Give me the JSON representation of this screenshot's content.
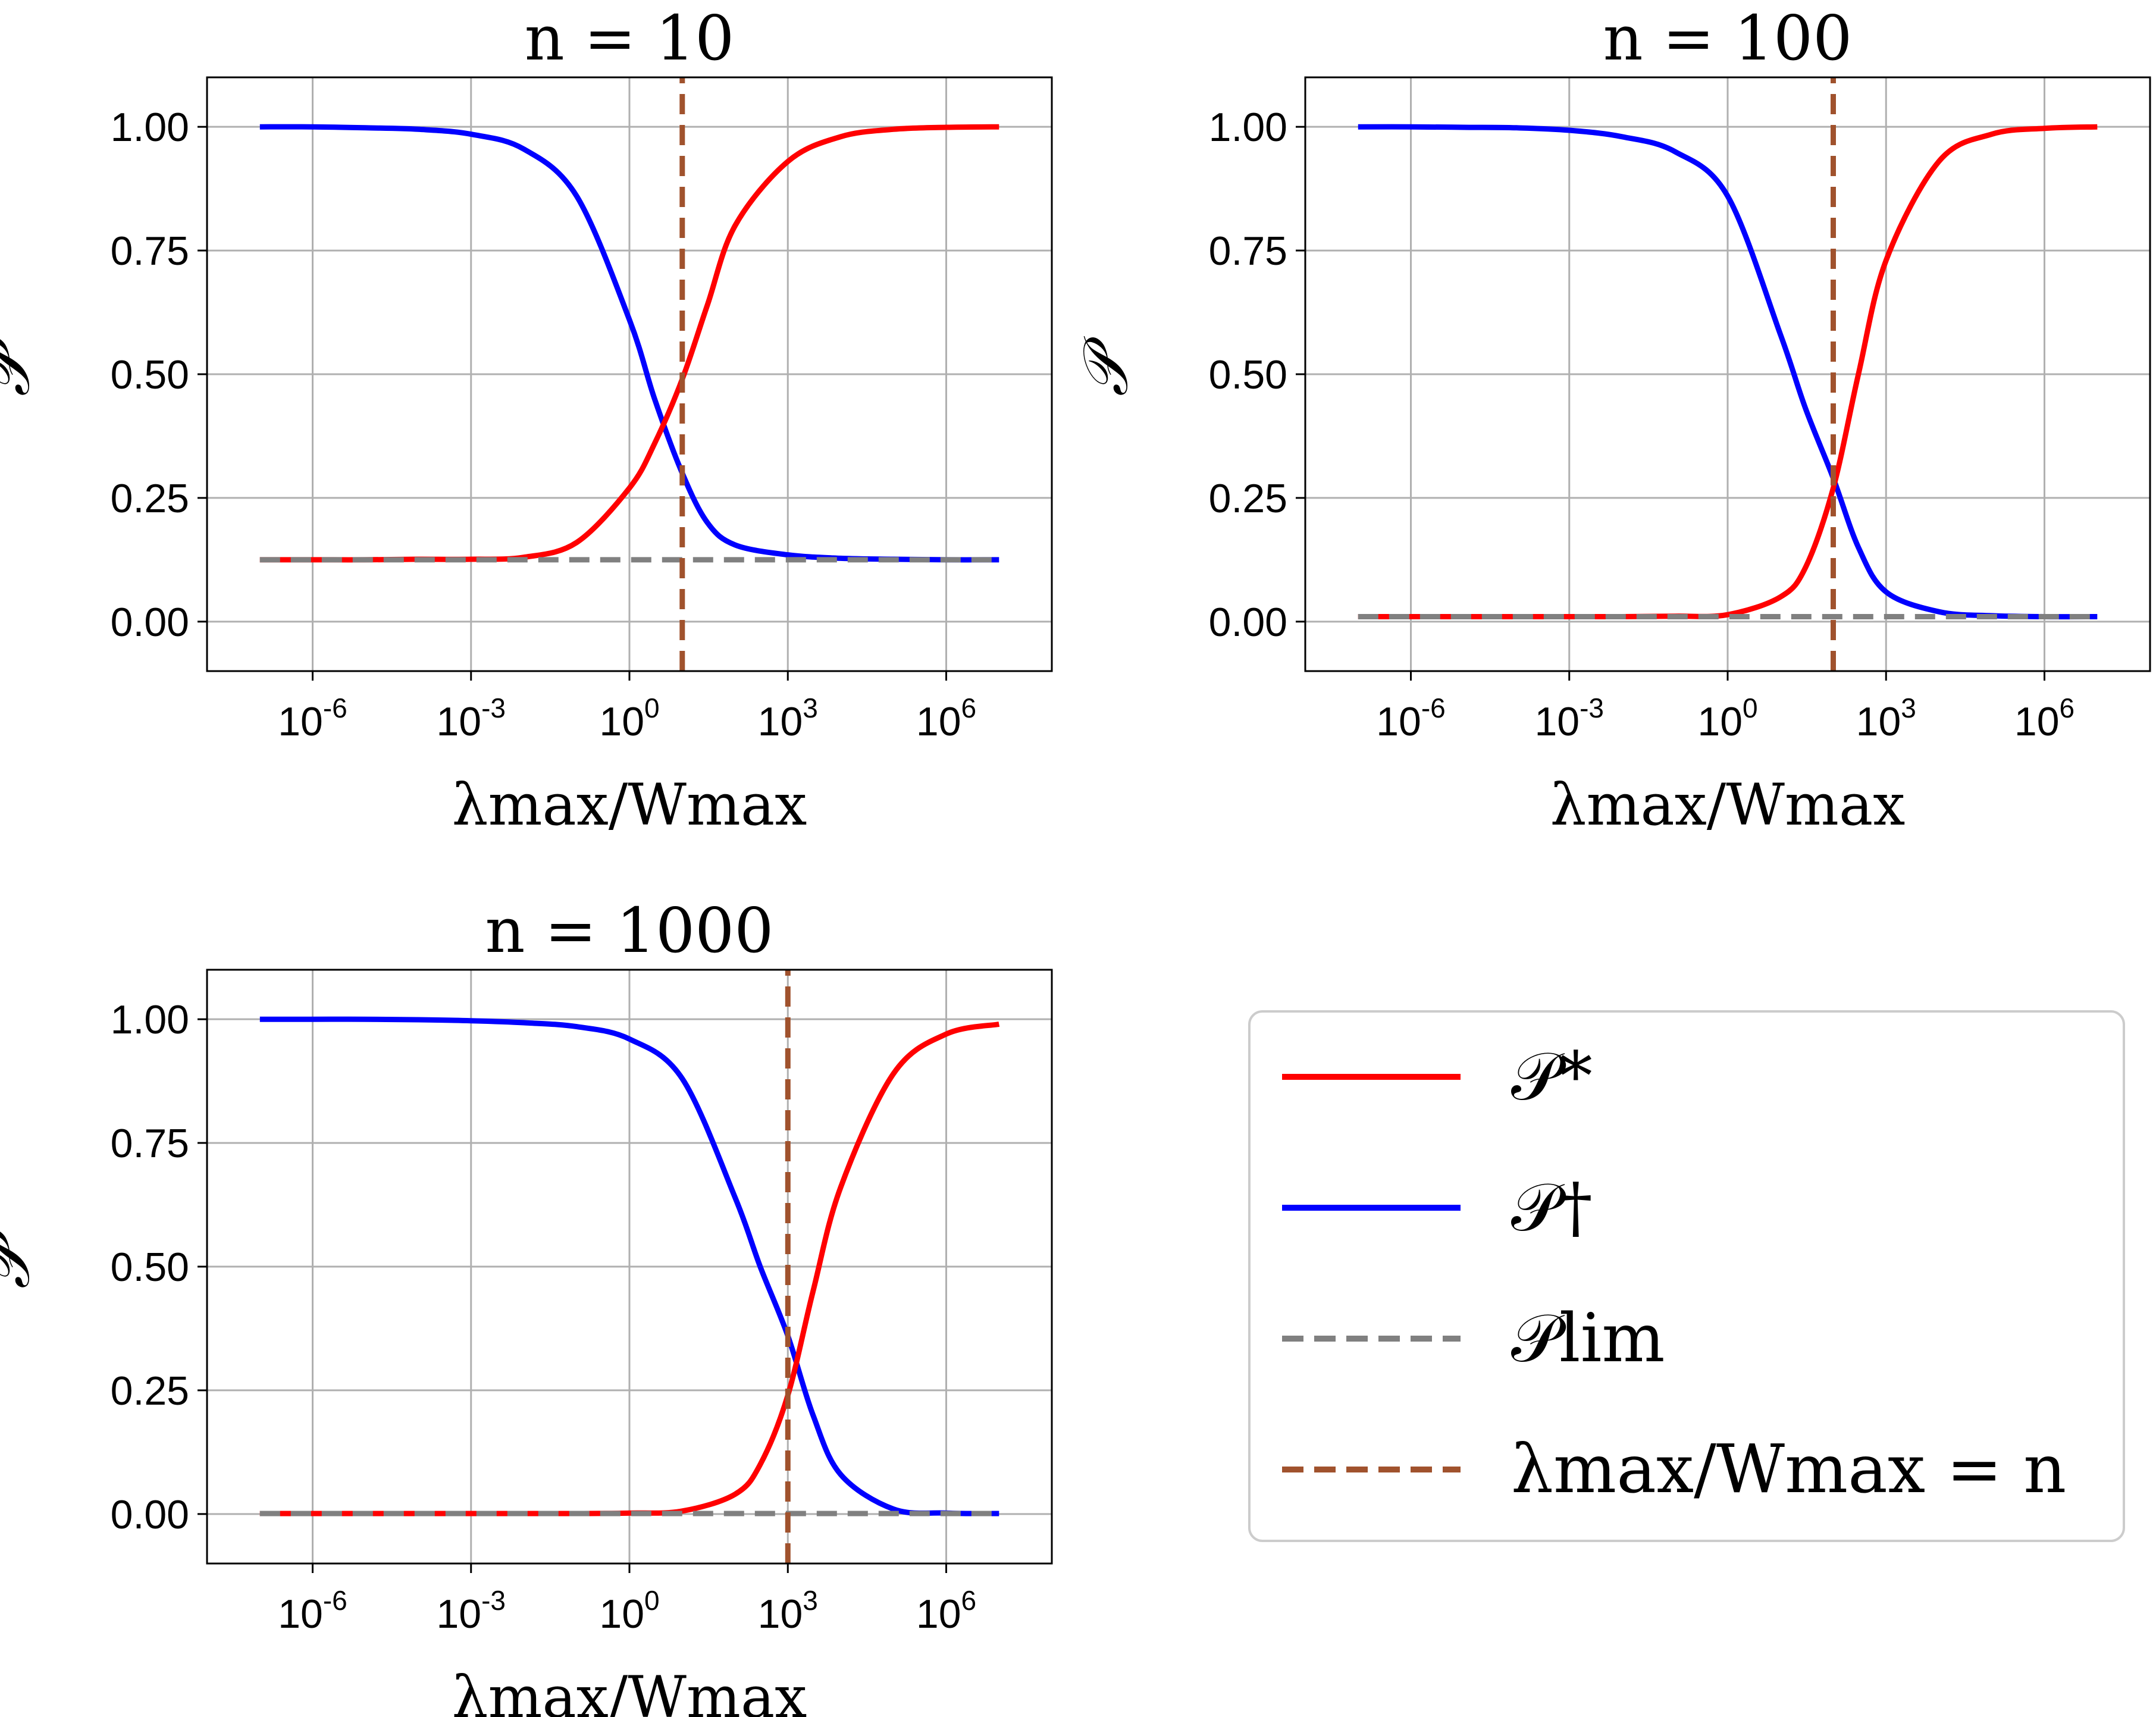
{
  "colors": {
    "p_star": "#ff0000",
    "p_dagger": "#0000ff",
    "p_lim": "#808080",
    "n_marker": "#a0522d",
    "grid": "#b0b0b0"
  },
  "legend": {
    "items": [
      {
        "label": "𝒫*",
        "color": "#ff0000",
        "style": "solid"
      },
      {
        "label": "𝒫†",
        "color": "#0000ff",
        "style": "solid"
      },
      {
        "label": "𝒫lim",
        "color": "#808080",
        "style": "dashed"
      },
      {
        "label": "λmax/Wmax = n",
        "color": "#a0522d",
        "style": "dashed"
      }
    ]
  },
  "chart_data": [
    {
      "type": "line",
      "title": "n = 10",
      "xlabel": "λmax/Wmax",
      "ylabel": "𝒫",
      "xscale": "log",
      "xlim": [
        1e-08,
        100000000.0
      ],
      "ylim": [
        -0.1,
        1.1
      ],
      "xticks": [
        "10-6",
        "10-3",
        "100",
        "103",
        "106"
      ],
      "yticks": [
        "0.00",
        "0.25",
        "0.50",
        "0.75",
        "1.00"
      ],
      "grid": true,
      "n": 10,
      "series": [
        {
          "name": "𝒫*",
          "x": [
            1e-07,
            1e-06,
            1e-05,
            0.0001,
            0.001,
            0.01,
            0.1,
            1,
            3,
            10,
            30,
            100,
            1000.0,
            10000.0,
            100000.0,
            1000000.0,
            10000000.0
          ],
          "y": [
            0.125,
            0.125,
            0.125,
            0.126,
            0.126,
            0.13,
            0.16,
            0.27,
            0.36,
            0.49,
            0.64,
            0.8,
            0.93,
            0.98,
            0.995,
            0.999,
            1.0
          ]
        },
        {
          "name": "𝒫†",
          "x": [
            1e-07,
            1e-06,
            1e-05,
            0.0001,
            0.001,
            0.01,
            0.1,
            1,
            3,
            10,
            30,
            100,
            1000.0,
            10000.0,
            100000.0,
            1000000.0,
            10000000.0
          ],
          "y": [
            1.0,
            1.0,
            0.998,
            0.995,
            0.985,
            0.955,
            0.86,
            0.61,
            0.45,
            0.3,
            0.2,
            0.155,
            0.135,
            0.128,
            0.126,
            0.125,
            0.125
          ]
        },
        {
          "name": "𝒫lim",
          "x": [
            1e-07,
            10000000.0
          ],
          "y": [
            0.125,
            0.125
          ]
        },
        {
          "name": "λmax/Wmax = n",
          "x": [
            10,
            10
          ],
          "y": [
            -0.1,
            1.1
          ]
        }
      ]
    },
    {
      "type": "line",
      "title": "n = 100",
      "xlabel": "λmax/Wmax",
      "ylabel": "𝒫",
      "xscale": "log",
      "xlim": [
        1e-08,
        100000000.0
      ],
      "ylim": [
        -0.1,
        1.1
      ],
      "xticks": [
        "10-6",
        "10-3",
        "100",
        "103",
        "106"
      ],
      "yticks": [
        "0.00",
        "0.25",
        "0.50",
        "0.75",
        "1.00"
      ],
      "grid": true,
      "n": 100,
      "series": [
        {
          "name": "𝒫*",
          "x": [
            1e-07,
            1e-06,
            1e-05,
            0.0001,
            0.001,
            0.01,
            0.1,
            1,
            10,
            30,
            100,
            300,
            1000.0,
            10000.0,
            100000.0,
            1000000.0,
            10000000.0
          ],
          "y": [
            0.01,
            0.01,
            0.01,
            0.01,
            0.01,
            0.01,
            0.011,
            0.014,
            0.05,
            0.11,
            0.27,
            0.5,
            0.73,
            0.93,
            0.985,
            0.997,
            1.0
          ]
        },
        {
          "name": "𝒫†",
          "x": [
            1e-07,
            1e-06,
            1e-05,
            0.0001,
            0.001,
            0.01,
            0.1,
            1,
            10,
            30,
            100,
            300,
            1000.0,
            10000.0,
            100000.0,
            1000000.0,
            10000000.0
          ],
          "y": [
            1.0,
            1.0,
            0.999,
            0.998,
            0.993,
            0.98,
            0.95,
            0.86,
            0.58,
            0.43,
            0.29,
            0.15,
            0.06,
            0.02,
            0.012,
            0.01,
            0.01
          ]
        },
        {
          "name": "𝒫lim",
          "x": [
            1e-07,
            10000000.0
          ],
          "y": [
            0.01,
            0.01
          ]
        },
        {
          "name": "λmax/Wmax = n",
          "x": [
            100,
            100
          ],
          "y": [
            -0.1,
            1.1
          ]
        }
      ]
    },
    {
      "type": "line",
      "title": "n = 1000",
      "xlabel": "λmax/Wmax",
      "ylabel": "𝒫",
      "xscale": "log",
      "xlim": [
        1e-08,
        100000000.0
      ],
      "ylim": [
        -0.1,
        1.1
      ],
      "xticks": [
        "10-6",
        "10-3",
        "100",
        "103",
        "106"
      ],
      "yticks": [
        "0.00",
        "0.25",
        "0.50",
        "0.75",
        "1.00"
      ],
      "grid": true,
      "n": 1000,
      "series": [
        {
          "name": "𝒫*",
          "x": [
            1e-07,
            1e-06,
            1e-05,
            0.0001,
            0.001,
            0.01,
            0.1,
            1,
            10,
            100,
            300,
            1000.0,
            3000.0,
            10000.0,
            100000.0,
            1000000.0,
            10000000.0
          ],
          "y": [
            0.001,
            0.001,
            0.001,
            0.001,
            0.001,
            0.001,
            0.001,
            0.002,
            0.006,
            0.04,
            0.1,
            0.24,
            0.45,
            0.66,
            0.89,
            0.97,
            0.99
          ]
        },
        {
          "name": "𝒫†",
          "x": [
            1e-07,
            1e-06,
            1e-05,
            0.0001,
            0.001,
            0.01,
            0.1,
            1,
            10,
            100,
            300,
            1000.0,
            3000.0,
            10000.0,
            100000.0,
            1000000.0,
            10000000.0
          ],
          "y": [
            1.0,
            1.0,
            1.0,
            0.999,
            0.997,
            0.993,
            0.985,
            0.96,
            0.88,
            0.64,
            0.5,
            0.36,
            0.2,
            0.08,
            0.01,
            0.002,
            0.001
          ]
        },
        {
          "name": "𝒫lim",
          "x": [
            1e-07,
            10000000.0
          ],
          "y": [
            0.001,
            0.001
          ]
        },
        {
          "name": "λmax/Wmax = n",
          "x": [
            1000,
            1000
          ],
          "y": [
            -0.1,
            1.1
          ]
        }
      ]
    }
  ]
}
